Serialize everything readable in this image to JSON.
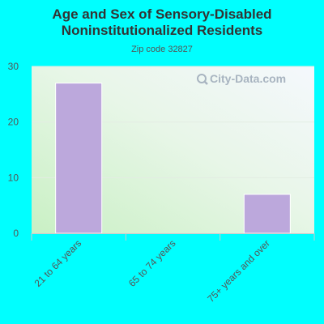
{
  "chart_data": {
    "type": "bar",
    "title": "Age and Sex of Sensory-Disabled Noninstitutionalized Residents",
    "title_lines": [
      "Age and Sex of Sensory-Disabled",
      "Noninstitutionalized Residents"
    ],
    "subtitle": "Zip code 32827",
    "categories": [
      "21 to 64 years",
      "65 to 74 years",
      "75+ years and over"
    ],
    "values": [
      27,
      0,
      7
    ],
    "ylim": [
      0,
      30
    ],
    "yticks": [
      0,
      10,
      20,
      30
    ],
    "grid": true,
    "bar_color": "#bca8dc"
  },
  "watermark": {
    "text": "City-Data.com",
    "icon": "magnifier-icon"
  },
  "colors": {
    "background": "#00ffff",
    "plot_bg_light": "#f4f7fc",
    "plot_bg_green": "#c9f0c4"
  }
}
